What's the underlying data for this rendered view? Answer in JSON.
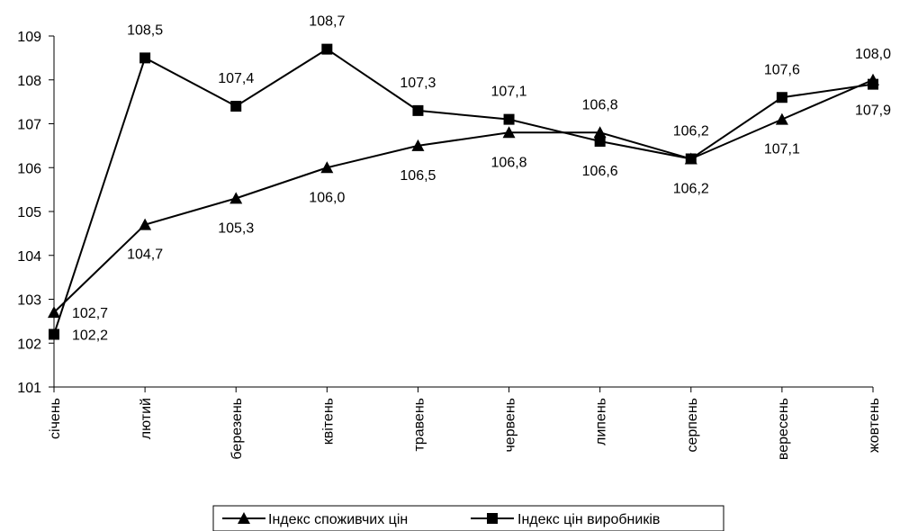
{
  "chart_data": {
    "type": "line",
    "categories": [
      "січень",
      "лютий",
      "березень",
      "квітень",
      "травень",
      "червень",
      "липень",
      "серпень",
      "вересень",
      "жовтень"
    ],
    "series": [
      {
        "name": "Індекс споживчих цін",
        "marker": "triangle",
        "values": [
          102.7,
          104.7,
          105.3,
          106.0,
          106.5,
          106.8,
          106.8,
          106.2,
          107.1,
          108.0
        ],
        "labels": [
          "102,7",
          "104,7",
          "105,3",
          "106,0",
          "106,5",
          "106,8",
          "106,8",
          "106,2",
          "107,1",
          "108,0"
        ]
      },
      {
        "name": "Індекс цін виробників",
        "marker": "square",
        "values": [
          102.2,
          108.5,
          107.4,
          108.7,
          107.3,
          107.1,
          106.6,
          106.2,
          107.6,
          107.9
        ],
        "labels": [
          "102,2",
          "108,5",
          "107,4",
          "108,7",
          "107,3",
          "107,1",
          "106,6",
          "106,2",
          "107,6",
          "107,9"
        ]
      }
    ],
    "y_ticks": [
      "101",
      "102",
      "103",
      "104",
      "105",
      "106",
      "107",
      "108",
      "109"
    ],
    "ylim": [
      101,
      109
    ],
    "grid": false,
    "legend_position": "bottom",
    "line_color": "#000000"
  }
}
